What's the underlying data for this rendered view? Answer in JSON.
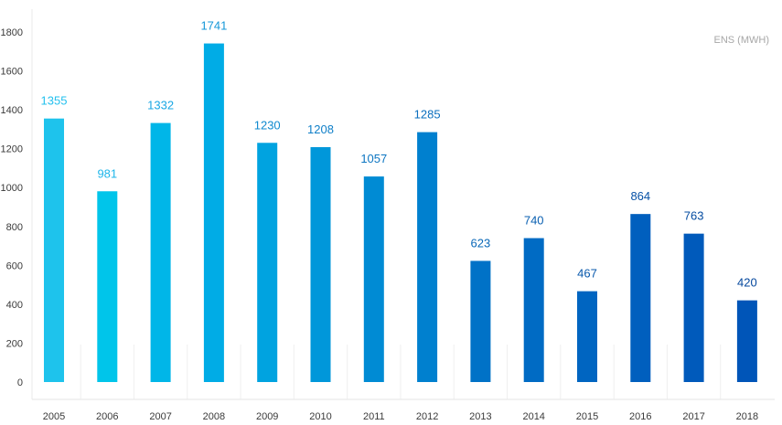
{
  "chart_data": {
    "type": "bar",
    "legend": "ENS (MWH)",
    "categories": [
      "2005",
      "2006",
      "2007",
      "2008",
      "2009",
      "2010",
      "2011",
      "2012",
      "2013",
      "2014",
      "2015",
      "2016",
      "2017",
      "2018"
    ],
    "values": [
      1355,
      981,
      1332,
      1741,
      1230,
      1208,
      1057,
      1285,
      623,
      740,
      467,
      864,
      763,
      420
    ],
    "colors": [
      "#1ec3ec",
      "#00c5ea",
      "#00b6e8",
      "#00acE6",
      "#00a3e0",
      "#0097da",
      "#008bd4",
      "#0080cf",
      "#0072c7",
      "#006bc4",
      "#0065c1",
      "#005fbe",
      "#005abb",
      "#0055b8"
    ],
    "value_label_colors": [
      "#23c0ee",
      "#1fb6ea",
      "#1aa7e4",
      "#1497d8",
      "#108acf",
      "#0f7fc8",
      "#0d76c2",
      "#0b6fbe",
      "#0a68b8",
      "#095fb1",
      "#0858ac",
      "#0651a6",
      "#054ca1",
      "#04479d"
    ],
    "yticks": [
      0,
      200,
      400,
      600,
      800,
      1000,
      1200,
      1400,
      1600,
      1800
    ],
    "ylim": [
      0,
      1800
    ],
    "grid": false,
    "legend_position": "top-right"
  }
}
